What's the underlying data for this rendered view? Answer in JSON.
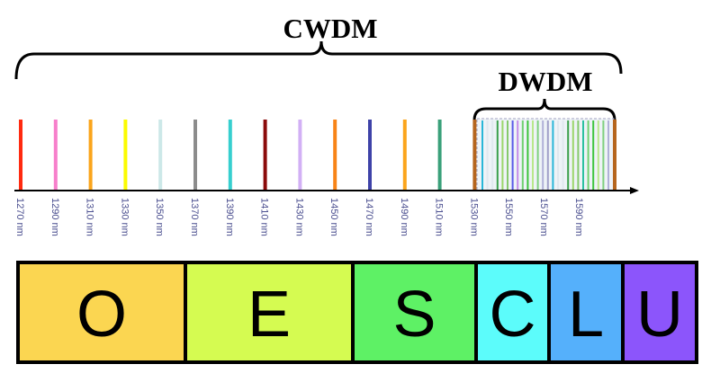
{
  "title_cwdm": "CWDM",
  "title_dwdm": "DWDM",
  "cwdm_channels": [
    {
      "label": "1270 nm",
      "color": "#ff2a10"
    },
    {
      "label": "1290 nm",
      "color": "#f77fcb"
    },
    {
      "label": "1310 nm",
      "color": "#fba51c"
    },
    {
      "label": "1330 nm",
      "color": "#fbfb00"
    },
    {
      "label": "1350 nm",
      "color": "#cce8e8"
    },
    {
      "label": "1370 nm",
      "color": "#8c8c8c"
    },
    {
      "label": "1390 nm",
      "color": "#36cfcf"
    },
    {
      "label": "1410 nm",
      "color": "#8b0b0b"
    },
    {
      "label": "1430 nm",
      "color": "#d2b0f5"
    },
    {
      "label": "1450 nm",
      "color": "#f88417"
    },
    {
      "label": "1470 nm",
      "color": "#3e42a8"
    },
    {
      "label": "1490 nm",
      "color": "#fba51c"
    },
    {
      "label": "1510 nm",
      "color": "#3aa07a"
    },
    {
      "label": "1530 nm",
      "color": "#b5651d"
    },
    {
      "label": "1550 nm",
      "color": ""
    },
    {
      "label": "1570 nm",
      "color": ""
    },
    {
      "label": "1590 nm",
      "color": ""
    }
  ],
  "dwdm_channel_colors": [
    "#29b6d8",
    "#e0e8ee",
    "#e0e8ee",
    "#3aa04a",
    "#9bd66a",
    "#86c96c",
    "#5a5ae8",
    "#c48ae8",
    "#6fd06f",
    "#3cc43c",
    "#b8e88a",
    "#7fd07f",
    "#b0b0d8",
    "#a0a0c8",
    "#29b6d8",
    "#e0e8ee",
    "#e0e8ee",
    "#3aa04a",
    "#9bd66a",
    "#86c96c",
    "#2ac0a0",
    "#6fd06f",
    "#3cc43c",
    "#b8e88a",
    "#7fd07f",
    "#b0b0d8"
  ],
  "dwdm_edge_color": "#b5651d",
  "bands": [
    {
      "label": "O",
      "color": "#fbd651"
    },
    {
      "label": "E",
      "color": "#d5fb51"
    },
    {
      "label": "S",
      "color": "#5ef165"
    },
    {
      "label": "C",
      "color": "#5cfcfb"
    },
    {
      "label": "L",
      "color": "#55b0fb"
    },
    {
      "label": "U",
      "color": "#8c55fb"
    }
  ]
}
